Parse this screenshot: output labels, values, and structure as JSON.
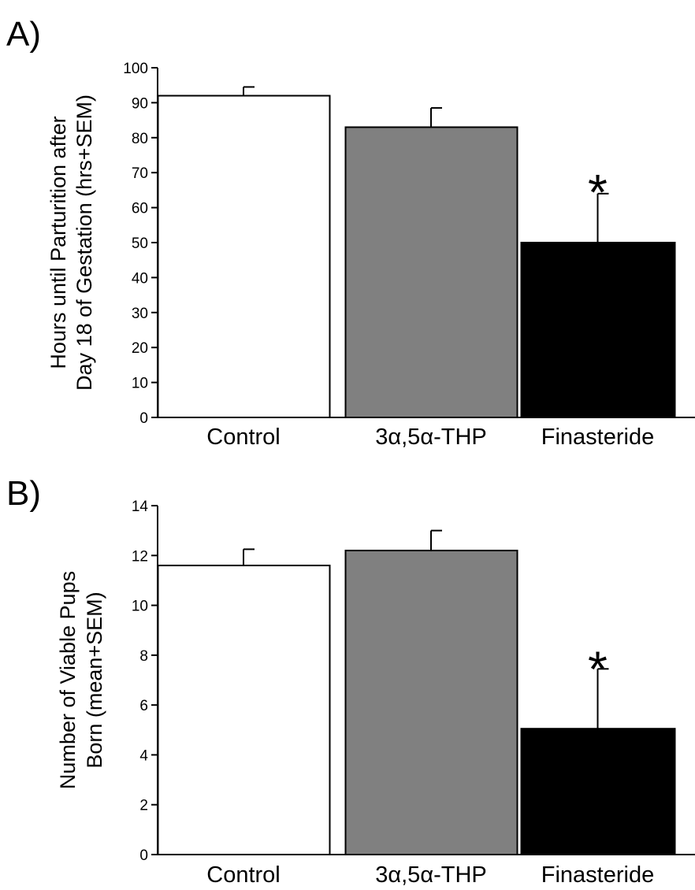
{
  "panels": [
    {
      "label": "A)",
      "ylabel_lines": [
        "Hours until Parturition after",
        "Day 18 of Gestation (hrs+SEM)"
      ]
    },
    {
      "label": "B)",
      "ylabel_lines": [
        "Number of Viable Pups",
        "Born (mean+SEM)"
      ]
    }
  ],
  "chart_data": [
    {
      "type": "bar",
      "categories": [
        "Control",
        "3α,5α-THP",
        "Finasteride"
      ],
      "values": [
        92,
        83,
        50
      ],
      "errors": [
        2.5,
        5.5,
        14
      ],
      "colors": [
        "#ffffff",
        "#808080",
        "#000000"
      ],
      "ylim": [
        0,
        100
      ],
      "yticks": [
        0,
        10,
        20,
        30,
        40,
        50,
        60,
        70,
        80,
        90,
        100
      ],
      "xlabel": "",
      "ylabel": "Hours until Parturition after Day 18 of Gestation (hrs+SEM)",
      "annotations": [
        {
          "category": "Finasteride",
          "text": "*"
        }
      ],
      "grid": false
    },
    {
      "type": "bar",
      "categories": [
        "Control",
        "3α,5α-THP",
        "Finasteride"
      ],
      "values": [
        11.6,
        12.2,
        5.05
      ],
      "errors": [
        0.65,
        0.8,
        2.4
      ],
      "colors": [
        "#ffffff",
        "#808080",
        "#000000"
      ],
      "ylim": [
        0,
        14
      ],
      "yticks": [
        0,
        2,
        4,
        6,
        8,
        10,
        12,
        14
      ],
      "xlabel": "",
      "ylabel": "Number of Viable Pups Born (mean+SEM)",
      "annotations": [
        {
          "category": "Finasteride",
          "text": "*"
        }
      ],
      "grid": false
    }
  ]
}
